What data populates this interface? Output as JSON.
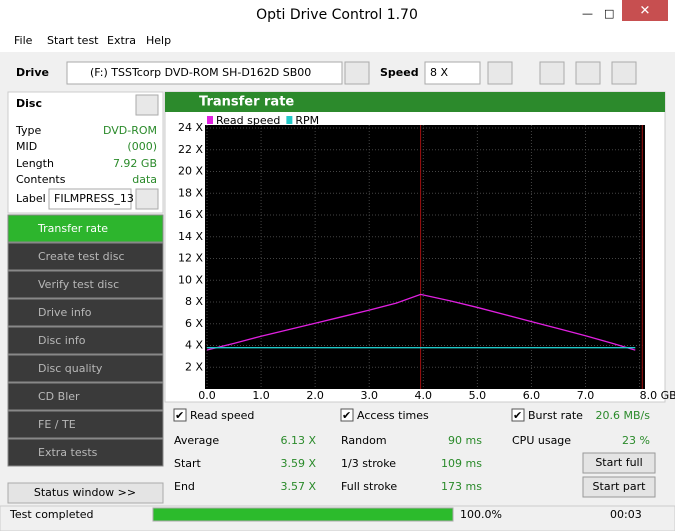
{
  "window": {
    "title": "Opti Drive Control 1.70"
  },
  "menu": [
    "File",
    "Start test",
    "Extra",
    "Help"
  ],
  "drive": {
    "label": "Drive",
    "device": "(F:)  TSSTcorp DVD-ROM SH-D162D SB00",
    "speed_label": "Speed",
    "speed": "8 X"
  },
  "disc": {
    "header": "Disc",
    "rows": [
      [
        "Type",
        "DVD-ROM"
      ],
      [
        "MID",
        "(000)"
      ],
      [
        "Length",
        "7.92 GB"
      ],
      [
        "Contents",
        "data"
      ]
    ],
    "label_caption": "Label",
    "label_value": "FILMPRESS_13"
  },
  "nav": [
    "Transfer rate",
    "Create test disc",
    "Verify test disc",
    "Drive info",
    "Disc info",
    "Disc quality",
    "CD Bler",
    "FE / TE",
    "Extra tests"
  ],
  "status_window": "Status window >>",
  "chart_data": {
    "type": "line",
    "title": "Transfer rate",
    "x": [
      0,
      0.5,
      1,
      1.5,
      2,
      2.5,
      3,
      3.5,
      3.95,
      4.5,
      5,
      5.5,
      6,
      6.5,
      7,
      7.5,
      7.92
    ],
    "series": [
      {
        "name": "Read speed",
        "color": "#e020e0",
        "values": [
          3.59,
          4.2,
          4.85,
          5.45,
          6.05,
          6.65,
          7.25,
          7.9,
          8.7,
          8.1,
          7.5,
          6.85,
          6.2,
          5.55,
          4.9,
          4.2,
          3.57
        ]
      },
      {
        "name": "RPM",
        "color": "#20c8c8",
        "values": [
          3.8,
          3.8,
          3.8,
          3.8,
          3.8,
          3.8,
          3.8,
          3.8,
          3.8,
          3.8,
          3.8,
          3.8,
          3.8,
          3.8,
          3.8,
          3.8,
          3.8
        ]
      }
    ],
    "markers": [
      3.95,
      8.05
    ],
    "xlim": [
      0,
      8.1
    ],
    "ylim": [
      0,
      24
    ],
    "xticks": [
      {
        "value": 0,
        "label": "0.0"
      },
      {
        "value": 1,
        "label": "1.0"
      },
      {
        "value": 2,
        "label": "2.0"
      },
      {
        "value": 3,
        "label": "3.0"
      },
      {
        "value": 4,
        "label": "4.0"
      },
      {
        "value": 5,
        "label": "5.0"
      },
      {
        "value": 6,
        "label": "6.0"
      },
      {
        "value": 7,
        "label": "7.0"
      },
      {
        "value": 8,
        "label": "8.0 GB"
      }
    ],
    "yticks": [
      {
        "value": 2,
        "label": "2 X"
      },
      {
        "value": 4,
        "label": "4 X"
      },
      {
        "value": 6,
        "label": "6 X"
      },
      {
        "value": 8,
        "label": "8 X"
      },
      {
        "value": 10,
        "label": "10 X"
      },
      {
        "value": 12,
        "label": "12 X"
      },
      {
        "value": 14,
        "label": "14 X"
      },
      {
        "value": 16,
        "label": "16 X"
      },
      {
        "value": 18,
        "label": "18 X"
      },
      {
        "value": 20,
        "label": "20 X"
      },
      {
        "value": 22,
        "label": "22 X"
      },
      {
        "value": 24,
        "label": "24 X"
      }
    ],
    "grid": true
  },
  "stats": {
    "checks": [
      "Read speed",
      "Access times",
      "Burst rate"
    ],
    "burst": "20.6 MB/s",
    "col1": [
      [
        "Average",
        "6.13 X"
      ],
      [
        "Start",
        "3.59 X"
      ],
      [
        "End",
        "3.57 X"
      ]
    ],
    "col2": [
      [
        "Random",
        "90 ms"
      ],
      [
        "1/3 stroke",
        "109 ms"
      ],
      [
        "Full stroke",
        "173 ms"
      ]
    ],
    "cpu": [
      "CPU usage",
      "23 %"
    ],
    "buttons": [
      "Start full",
      "Start part"
    ]
  },
  "status": {
    "text": "Test completed",
    "progress": "100.0%",
    "time": "00:03"
  }
}
